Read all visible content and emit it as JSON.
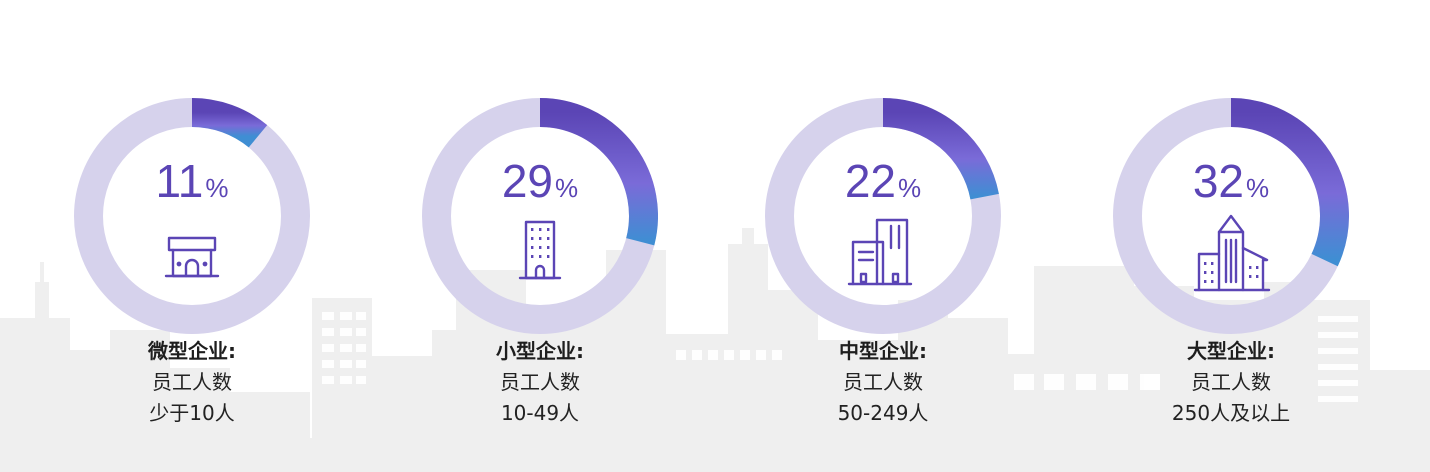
{
  "colors": {
    "track": "#d6d2ec",
    "arc_start": "#5b45b5",
    "arc_mid": "#7a6bd8",
    "arc_end": "#3f8ed3",
    "percent_text": "#5b45b5",
    "skyline": "#efefef"
  },
  "chart_data": [
    {
      "type": "pie",
      "title": "微型企业:",
      "values": [
        11
      ],
      "unit": "%",
      "description_lines": [
        "员工人数",
        "少于10人"
      ],
      "icon": "small-shop-icon"
    },
    {
      "type": "pie",
      "title": "小型企业:",
      "values": [
        29
      ],
      "unit": "%",
      "description_lines": [
        "员工人数",
        "10-49人"
      ],
      "icon": "office-building-icon"
    },
    {
      "type": "pie",
      "title": "中型企业:",
      "values": [
        22
      ],
      "unit": "%",
      "description_lines": [
        "员工人数",
        "50-249人"
      ],
      "icon": "twin-towers-icon"
    },
    {
      "type": "pie",
      "title": "大型企业:",
      "values": [
        32
      ],
      "unit": "%",
      "description_lines": [
        "员工人数",
        "250人及以上"
      ],
      "icon": "skyscraper-complex-icon"
    }
  ]
}
